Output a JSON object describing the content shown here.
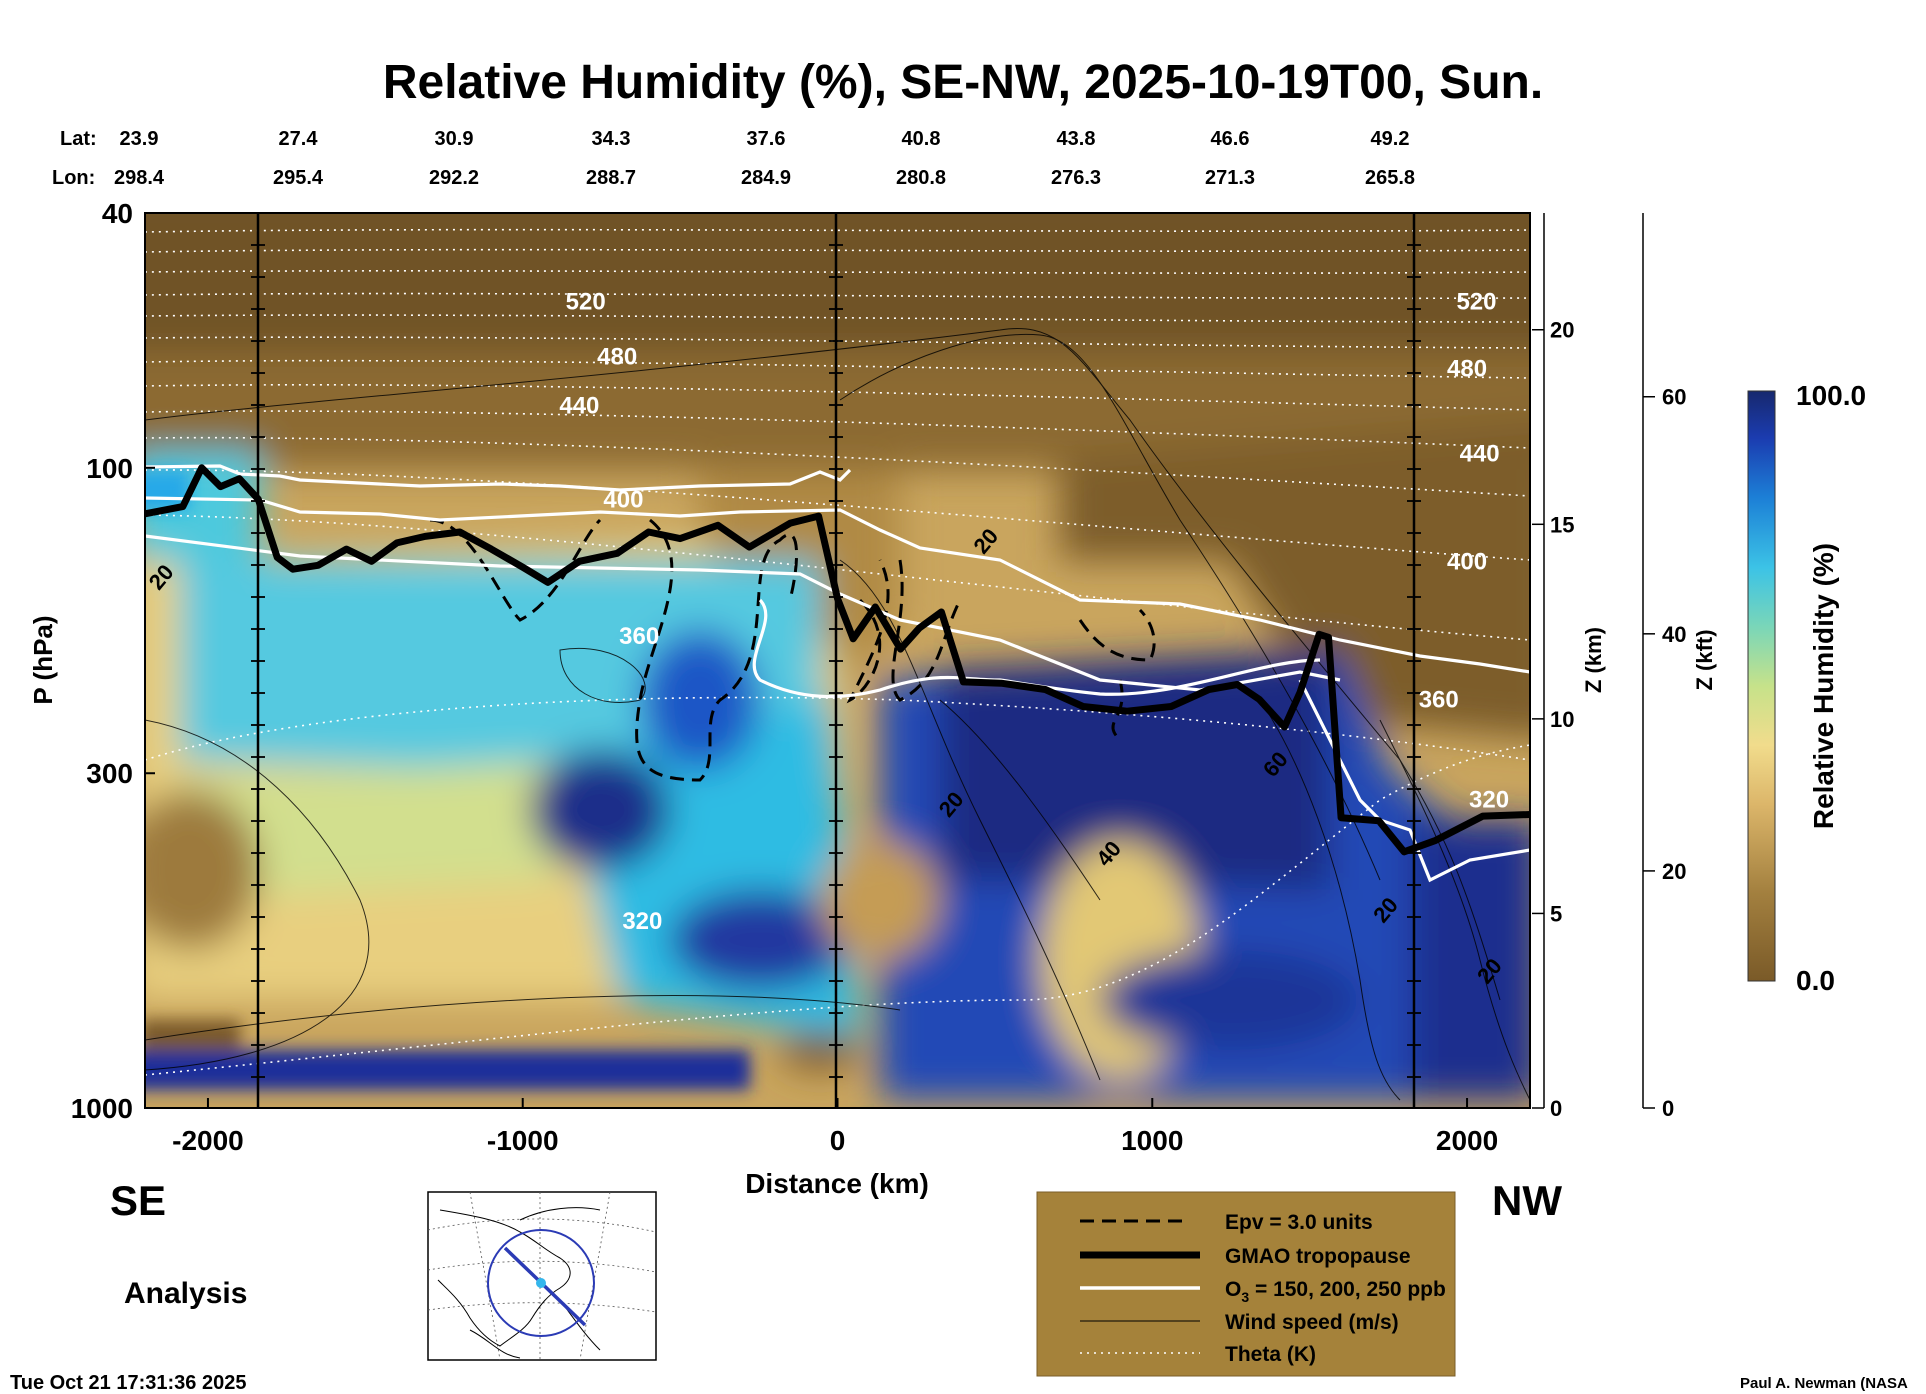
{
  "chart_data": {
    "type": "heatmap",
    "title": "Relative Humidity (%), SE-NW, 2025-10-19T00, Sun.",
    "xlabel": "Distance (km)",
    "ylabel": "P (hPa)",
    "z_km_label": "Z (km)",
    "z_kft_label": "Z (kft)",
    "colorbar_label": "Relative Humidity (%)",
    "colorbar_range": [
      0.0,
      100.0
    ],
    "colorbar_max_label": "100.0",
    "colorbar_min_label": "0.0",
    "x_range": [
      -2200,
      2200
    ],
    "x_ticks": [
      -2000,
      -1000,
      0,
      1000,
      2000
    ],
    "x_tick_labels": [
      "-2000",
      "-1000",
      "0",
      "1000",
      "2000"
    ],
    "p_range": [
      1000,
      40
    ],
    "p_ticks": [
      40,
      100,
      300,
      1000
    ],
    "p_tick_labels": [
      "40",
      "100",
      "300",
      "1000"
    ],
    "z_km_ticks": [
      0,
      5,
      10,
      15,
      20
    ],
    "z_km_tick_labels": [
      "0",
      "5",
      "10",
      "15",
      "20"
    ],
    "z_kft_ticks": [
      0,
      20,
      40,
      60
    ],
    "z_kft_tick_labels": [
      "0",
      "20",
      "40",
      "60"
    ],
    "lat_label": "Lat:",
    "lon_label": "Lon:",
    "lat": [
      "23.9",
      "27.4",
      "30.9",
      "34.3",
      "37.6",
      "40.8",
      "43.8",
      "46.6",
      "49.2"
    ],
    "lon": [
      "298.4",
      "295.4",
      "292.2",
      "288.7",
      "284.9",
      "280.8",
      "276.3",
      "271.3",
      "265.8"
    ],
    "theta_labels": [
      {
        "value": "520",
        "x": -800,
        "p": 55
      },
      {
        "value": "480",
        "x": -700,
        "p": 67
      },
      {
        "value": "440",
        "x": -820,
        "p": 80
      },
      {
        "value": "400",
        "x": -680,
        "p": 112
      },
      {
        "value": "360",
        "x": -630,
        "p": 183
      },
      {
        "value": "320",
        "x": -620,
        "p": 510
      },
      {
        "value": "520",
        "x": 2030,
        "p": 55
      },
      {
        "value": "480",
        "x": 2000,
        "p": 70
      },
      {
        "value": "440",
        "x": 2040,
        "p": 95
      },
      {
        "value": "400",
        "x": 2000,
        "p": 140
      },
      {
        "value": "360",
        "x": 1910,
        "p": 230
      },
      {
        "value": "320",
        "x": 2070,
        "p": 330
      }
    ],
    "wind_labels": [
      {
        "value": "20",
        "x": -2150,
        "p": 148
      },
      {
        "value": "20",
        "x": 470,
        "p": 130
      },
      {
        "value": "20",
        "x": 360,
        "p": 335
      },
      {
        "value": "40",
        "x": 860,
        "p": 400
      },
      {
        "value": "60",
        "x": 1390,
        "p": 290
      },
      {
        "value": "20",
        "x": 1740,
        "p": 490
      },
      {
        "value": "20",
        "x": 2070,
        "p": 610
      }
    ],
    "tropopause_p": [
      {
        "x": -2200,
        "p": 118
      },
      {
        "x": -2080,
        "p": 115
      },
      {
        "x": -2020,
        "p": 100
      },
      {
        "x": -1960,
        "p": 107
      },
      {
        "x": -1900,
        "p": 104
      },
      {
        "x": -1840,
        "p": 112
      },
      {
        "x": -1780,
        "p": 138
      },
      {
        "x": -1730,
        "p": 144
      },
      {
        "x": -1650,
        "p": 142
      },
      {
        "x": -1560,
        "p": 134
      },
      {
        "x": -1480,
        "p": 140
      },
      {
        "x": -1400,
        "p": 131
      },
      {
        "x": -1310,
        "p": 128
      },
      {
        "x": -1200,
        "p": 126
      },
      {
        "x": -1100,
        "p": 134
      },
      {
        "x": -1000,
        "p": 143
      },
      {
        "x": -920,
        "p": 151
      },
      {
        "x": -820,
        "p": 140
      },
      {
        "x": -700,
        "p": 136
      },
      {
        "x": -600,
        "p": 126
      },
      {
        "x": -500,
        "p": 129
      },
      {
        "x": -380,
        "p": 123
      },
      {
        "x": -280,
        "p": 133
      },
      {
        "x": -150,
        "p": 122
      },
      {
        "x": -60,
        "p": 119
      },
      {
        "x": 0,
        "p": 160
      },
      {
        "x": 50,
        "p": 185
      },
      {
        "x": 120,
        "p": 165
      },
      {
        "x": 200,
        "p": 192
      },
      {
        "x": 260,
        "p": 178
      },
      {
        "x": 330,
        "p": 168
      },
      {
        "x": 400,
        "p": 216
      },
      {
        "x": 520,
        "p": 217
      },
      {
        "x": 660,
        "p": 222
      },
      {
        "x": 780,
        "p": 236
      },
      {
        "x": 920,
        "p": 240
      },
      {
        "x": 1060,
        "p": 236
      },
      {
        "x": 1180,
        "p": 222
      },
      {
        "x": 1270,
        "p": 218
      },
      {
        "x": 1340,
        "p": 230
      },
      {
        "x": 1420,
        "p": 254
      },
      {
        "x": 1470,
        "p": 224
      },
      {
        "x": 1530,
        "p": 182
      },
      {
        "x": 1560,
        "p": 184
      },
      {
        "x": 1600,
        "p": 352
      },
      {
        "x": 1720,
        "p": 356
      },
      {
        "x": 1800,
        "p": 398
      },
      {
        "x": 1900,
        "p": 382
      },
      {
        "x": 2050,
        "p": 350
      },
      {
        "x": 2200,
        "p": 348
      }
    ],
    "map_inset": "orthographic view of North America with cross-section line",
    "legend": [
      {
        "style": "dashed-black",
        "label": "Epv = 3.0 units"
      },
      {
        "style": "thick-black",
        "label": "GMAO tropopause"
      },
      {
        "style": "white",
        "label_prefix": "O",
        "label_subscript": "3",
        "label_suffix": " = 150, 200, 250 ppb"
      },
      {
        "style": "thin-black",
        "label": "Wind speed (m/s)"
      },
      {
        "style": "dotted-white",
        "label": "Theta (K)"
      }
    ]
  },
  "footer": {
    "left_direction": "SE",
    "right_direction": "NW",
    "product": "Analysis",
    "timestamp": "Tue Oct 21 17:31:36 2025",
    "credit": "Paul A. Newman (NASA"
  },
  "colors": {
    "rh_dry": "#7d5d2a",
    "rh_mid": "#e9cc7d",
    "rh_moist": "#46c7df",
    "rh_saturated": "#1e2f8a",
    "legend_bg": "#a5823a"
  }
}
